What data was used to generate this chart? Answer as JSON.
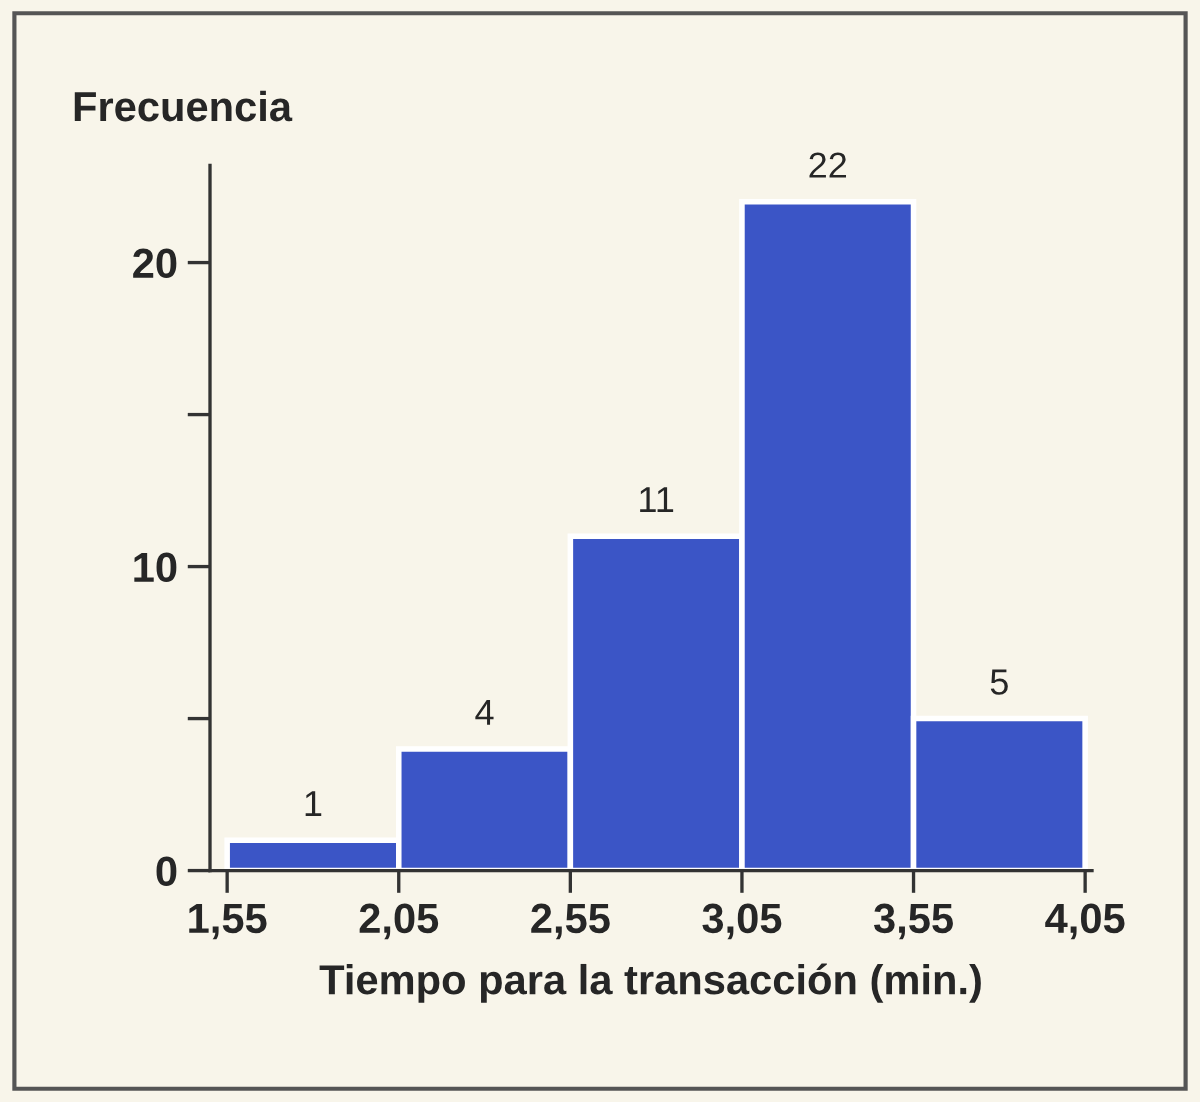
{
  "chart_data": {
    "type": "histogram",
    "ylabel": "Frecuencia",
    "xlabel": "Tiempo para la transacción (min.)",
    "bins": [
      1.55,
      2.05,
      2.55,
      3.05,
      3.55,
      4.05
    ],
    "values": [
      1,
      4,
      11,
      22,
      5
    ],
    "color": "#3b55c6",
    "data_labels": true,
    "xlim": [
      1.5,
      4.07
    ],
    "xticks": [
      {
        "value": 1.55,
        "label": "1,55"
      },
      {
        "value": 2.05,
        "label": "2,05"
      },
      {
        "value": 2.55,
        "label": "2,55"
      },
      {
        "value": 3.05,
        "label": "3,05"
      },
      {
        "value": 3.55,
        "label": "3,55"
      },
      {
        "value": 4.05,
        "label": "4,05"
      }
    ],
    "ylim": [
      0,
      23.2
    ],
    "yticks": [
      0,
      {
        "value": 5,
        "label": null
      },
      10,
      {
        "value": 15,
        "label": null
      },
      20
    ],
    "grid": false
  }
}
